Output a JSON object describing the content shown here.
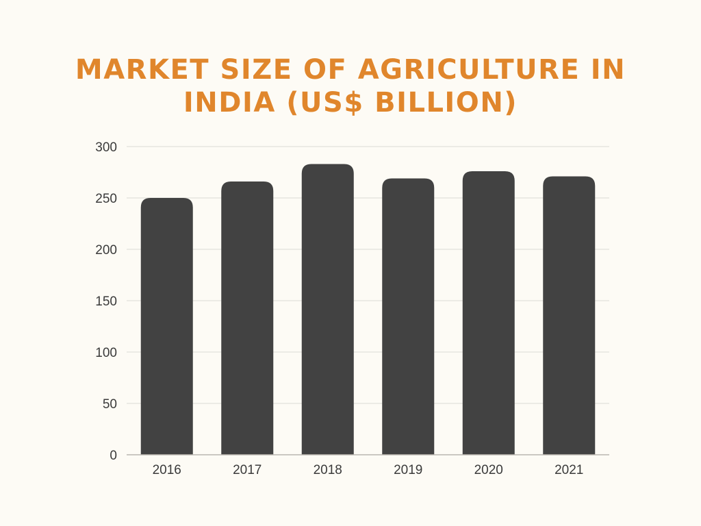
{
  "title_line1": "MARKET SIZE OF AGRICULTURE IN",
  "title_line2": "INDIA (US$ BILLION)",
  "colors": {
    "background": "#fdfbf5",
    "title": "#e0862c",
    "bar": "#424242",
    "grid": "#e3e1dc",
    "text": "#3a3a3a"
  },
  "chart_data": {
    "type": "bar",
    "title": "MARKET SIZE OF AGRICULTURE IN INDIA (US$ BILLION)",
    "xlabel": "",
    "ylabel": "",
    "categories": [
      "2016",
      "2017",
      "2018",
      "2019",
      "2020",
      "2021"
    ],
    "values": [
      250,
      266,
      283,
      269,
      276,
      271
    ],
    "ylim": [
      0,
      300
    ],
    "yticks": [
      0,
      50,
      100,
      150,
      200,
      250,
      300
    ],
    "grid": true,
    "legend": "none"
  }
}
